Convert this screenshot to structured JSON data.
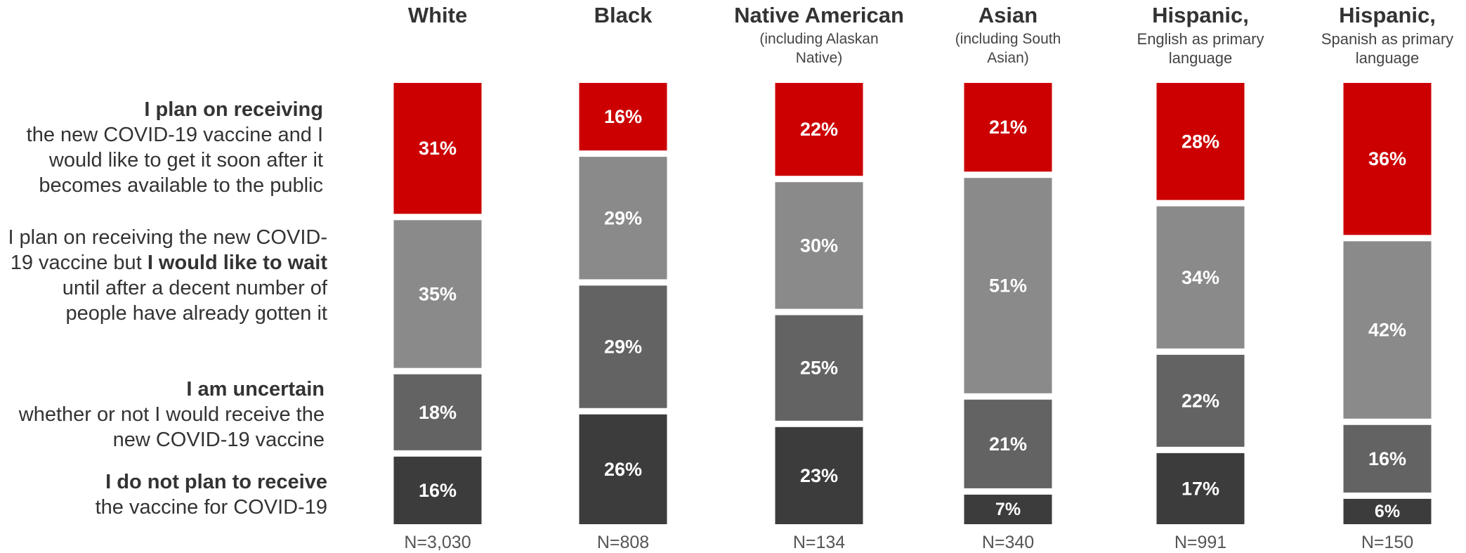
{
  "colors": {
    "plan_soon": "#cc0000",
    "plan_wait": "#8a8a8a",
    "uncertain": "#636363",
    "not_plan": "#3c3c3c"
  },
  "legend": [
    {
      "key": "plan_soon",
      "bold": "I plan on receiving",
      "text": "the new COVID-19 vaccine and I would like to get it soon after it becomes available to the public"
    },
    {
      "key": "plan_wait",
      "pre": "I plan on receiving the new COVID-19 vaccine but",
      "bold": "I would like to wait",
      "post": "until after a decent number of people have already gotten it"
    },
    {
      "key": "uncertain",
      "bold": "I am uncertain",
      "text": "whether or not I would receive the new COVID-19 vaccine"
    },
    {
      "key": "not_plan",
      "bold": "I do not plan to receive",
      "text": "the vaccine for COVID-19"
    }
  ],
  "chart_data": {
    "type": "bar",
    "stacked": true,
    "normalized": true,
    "categories": [
      "White",
      "Black",
      "Native American",
      "Asian",
      "Hispanic,",
      "Hispanic,"
    ],
    "subtitles": [
      "",
      "",
      "(including Alaskan Native)",
      "(including South Asian)",
      "English as primary language",
      "Spanish as primary language"
    ],
    "sample_sizes": [
      "N=3,030",
      "N=808",
      "N=134",
      "N=340",
      "N=991",
      "N=150"
    ],
    "series": [
      {
        "key": "plan_soon",
        "values": [
          31,
          16,
          22,
          21,
          28,
          36
        ]
      },
      {
        "key": "plan_wait",
        "values": [
          35,
          29,
          30,
          51,
          34,
          42
        ]
      },
      {
        "key": "uncertain",
        "values": [
          18,
          29,
          25,
          21,
          22,
          16
        ]
      },
      {
        "key": "not_plan",
        "values": [
          16,
          26,
          23,
          7,
          17,
          6
        ]
      }
    ],
    "value_suffix": "%"
  }
}
